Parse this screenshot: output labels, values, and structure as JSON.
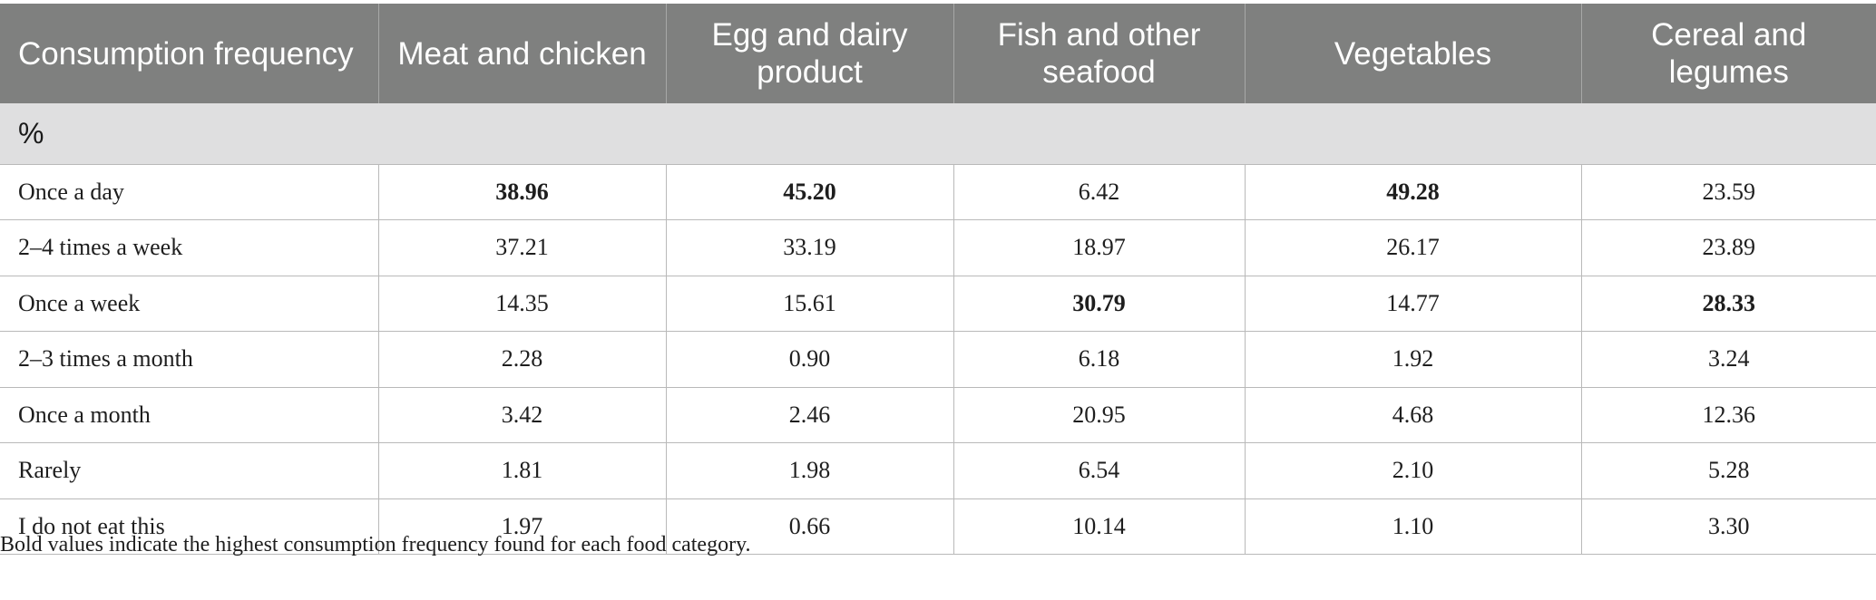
{
  "table": {
    "headers": [
      "Consumption frequency",
      "Meat and chicken",
      "Egg and dairy product",
      "Fish and other seafood",
      "Vegetables",
      "Cereal and legumes"
    ],
    "unit": "%",
    "rows": [
      {
        "label": "Once a day",
        "values": [
          "38.96",
          "45.20",
          "6.42",
          "49.28",
          "23.59"
        ],
        "bold": [
          true,
          true,
          false,
          true,
          false
        ]
      },
      {
        "label": "2–4 times a week",
        "values": [
          "37.21",
          "33.19",
          "18.97",
          "26.17",
          "23.89"
        ],
        "bold": [
          false,
          false,
          false,
          false,
          false
        ]
      },
      {
        "label": "Once a week",
        "values": [
          "14.35",
          "15.61",
          "30.79",
          "14.77",
          "28.33"
        ],
        "bold": [
          false,
          false,
          true,
          false,
          true
        ]
      },
      {
        "label": "2–3 times a month",
        "values": [
          "2.28",
          "0.90",
          "6.18",
          "1.92",
          "3.24"
        ],
        "bold": [
          false,
          false,
          false,
          false,
          false
        ]
      },
      {
        "label": "Once a month",
        "values": [
          "3.42",
          "2.46",
          "20.95",
          "4.68",
          "12.36"
        ],
        "bold": [
          false,
          false,
          false,
          false,
          false
        ]
      },
      {
        "label": "Rarely",
        "values": [
          "1.81",
          "1.98",
          "6.54",
          "2.10",
          "5.28"
        ],
        "bold": [
          false,
          false,
          false,
          false,
          false
        ]
      },
      {
        "label": "I do not eat this",
        "values": [
          "1.97",
          "0.66",
          "10.14",
          "1.10",
          "3.30"
        ],
        "bold": [
          false,
          false,
          false,
          false,
          false
        ]
      }
    ]
  },
  "footnote": "Bold values indicate the highest consumption frequency found for each food category.",
  "colors": {
    "header_bg": "#7f807f",
    "unit_row_bg": "#dfdfe0",
    "grid_line": "#b9b9b9"
  }
}
